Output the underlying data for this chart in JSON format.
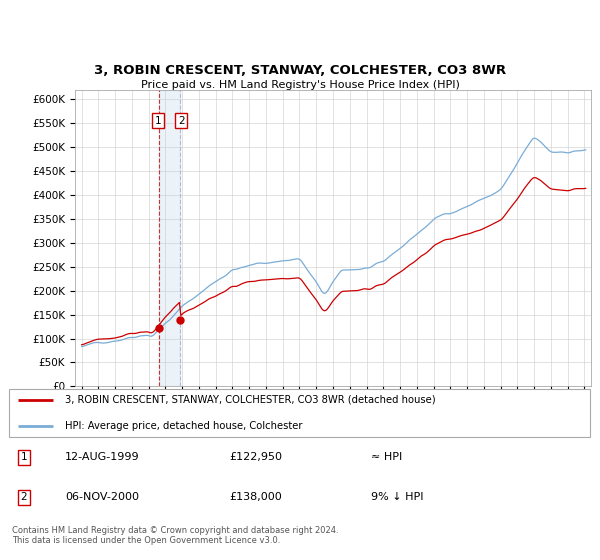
{
  "title": "3, ROBIN CRESCENT, STANWAY, COLCHESTER, CO3 8WR",
  "subtitle": "Price paid vs. HM Land Registry's House Price Index (HPI)",
  "legend_line1": "3, ROBIN CRESCENT, STANWAY, COLCHESTER, CO3 8WR (detached house)",
  "legend_line2": "HPI: Average price, detached house, Colchester",
  "footer": "Contains HM Land Registry data © Crown copyright and database right 2024.\nThis data is licensed under the Open Government Licence v3.0.",
  "sale1_date": "12-AUG-1999",
  "sale1_price": 122950,
  "sale1_note": "≈ HPI",
  "sale2_date": "06-NOV-2000",
  "sale2_price": 138000,
  "sale2_note": "9% ↓ HPI",
  "hpi_color": "#7aacd6",
  "price_color": "#cc0000",
  "sale_marker_color": "#cc0000",
  "ylim_min": 0,
  "ylim_max": 620000,
  "yticks": [
    0,
    50000,
    100000,
    150000,
    200000,
    250000,
    300000,
    350000,
    400000,
    450000,
    500000,
    550000,
    600000
  ],
  "sale1_year": 1999.62,
  "sale2_year": 2000.85,
  "shade_color": "#ddeeff"
}
